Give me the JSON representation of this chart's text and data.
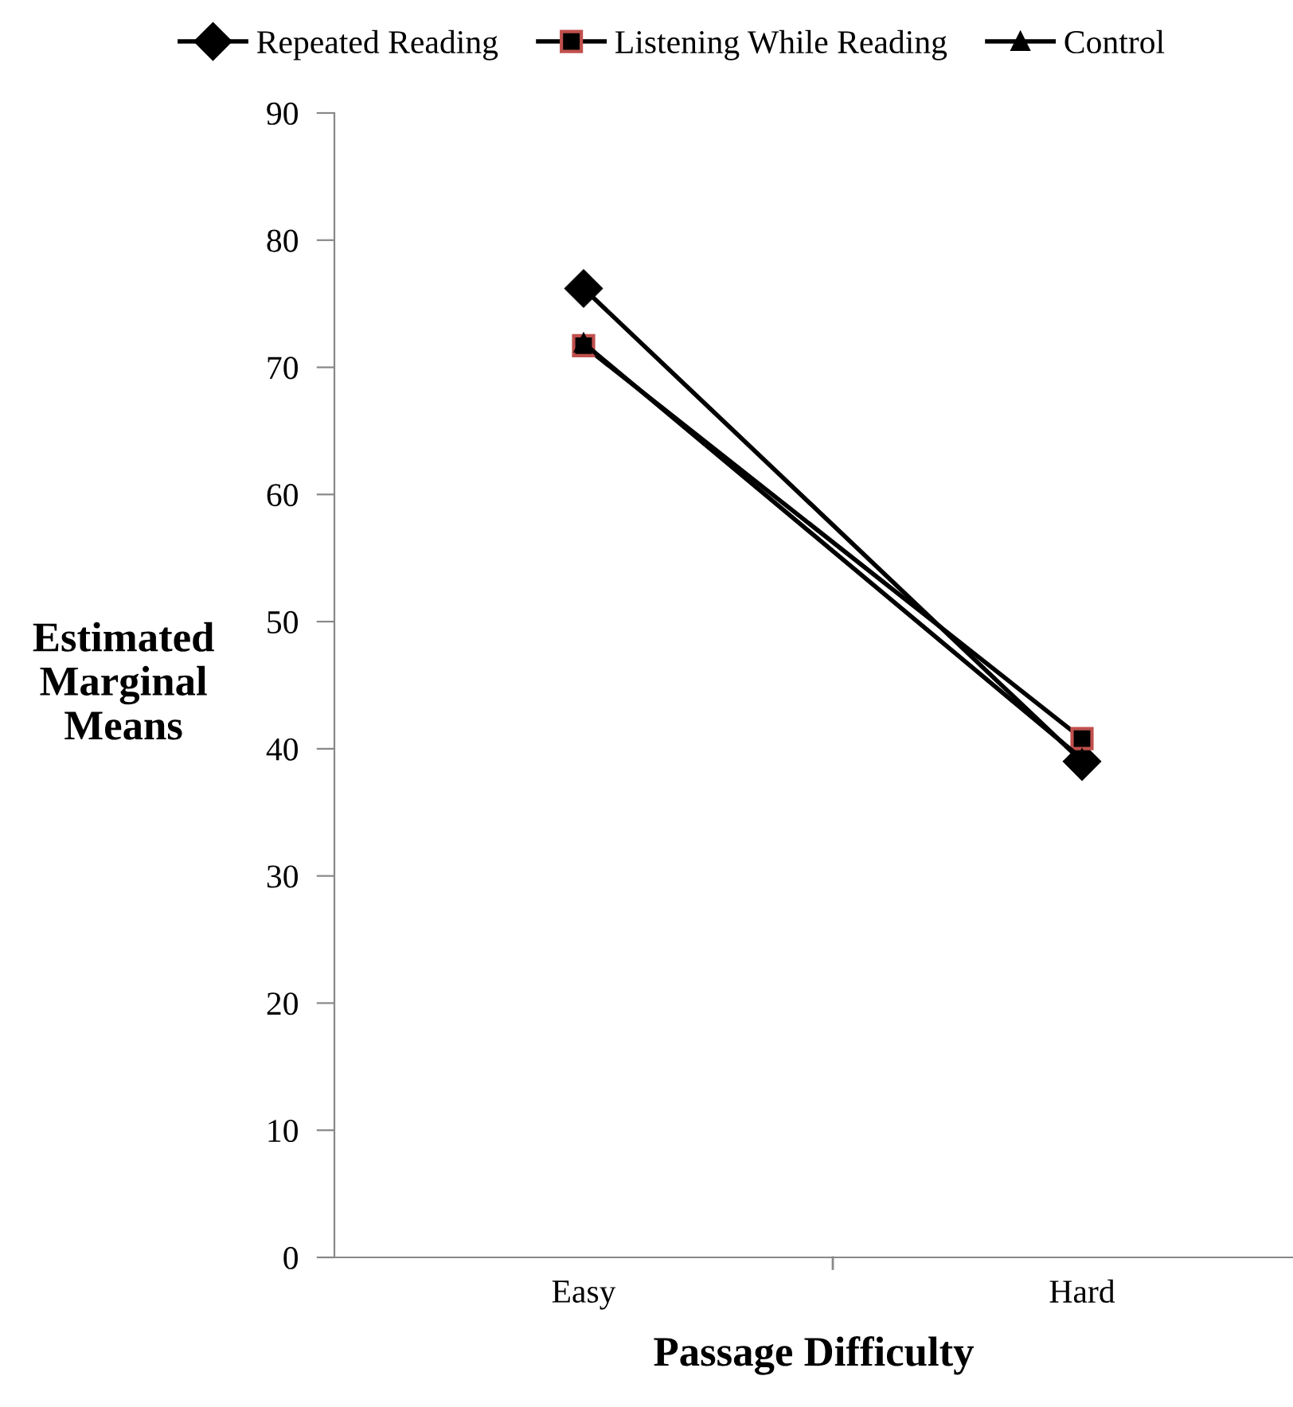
{
  "chart_data": {
    "type": "line",
    "xlabel": "Passage Difficulty",
    "ylabel": "Estimated\nMarginal\nMeans",
    "categories": [
      "Easy",
      "Hard"
    ],
    "series": [
      {
        "name": "Repeated Reading",
        "color": "#000000",
        "marker": "diamond",
        "values": [
          76.2,
          39.0
        ]
      },
      {
        "name": "Listening While Reading",
        "color": "#000000",
        "marker": "square",
        "values": [
          71.7,
          40.8
        ]
      },
      {
        "name": "Control",
        "color": "#000000",
        "marker": "triangle",
        "values": [
          71.9,
          39.2
        ]
      }
    ],
    "ylim": [
      0,
      90
    ],
    "yticks": [
      0,
      10,
      20,
      30,
      40,
      50,
      60,
      70,
      80,
      90
    ],
    "grid": false,
    "legend": "top",
    "line_style": "solid"
  }
}
